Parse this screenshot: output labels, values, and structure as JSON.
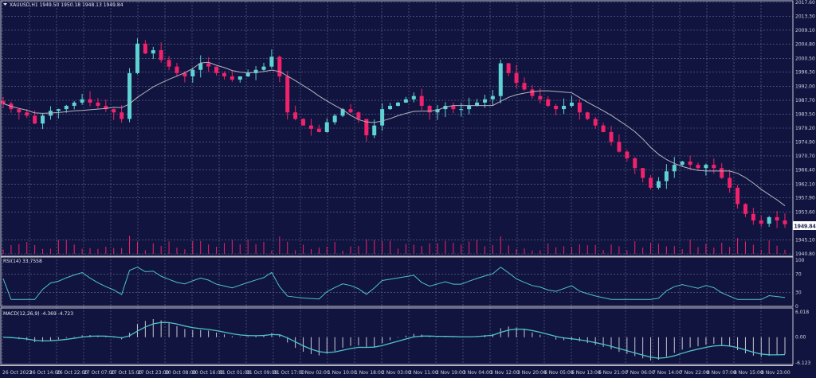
{
  "window": {
    "symbol_header": "XAUUSD,H1  1949.50 1950.18 1948.13 1949.84",
    "current_price": "1949.84"
  },
  "colors": {
    "background": "#11143f",
    "grid": "#6a6d8f",
    "bull_candle": "#5fd3d3",
    "bear_candle": "#f0226b",
    "moving_average": "#b4b4c0",
    "indicator_line": "#4fc3c7",
    "volume": "#f0226b",
    "macd_histogram": "#c8c8d0"
  },
  "chart_data": [
    {
      "type": "candlestick",
      "price_axis_labels": [
        "2017.60",
        "2013.30",
        "2009.10",
        "2004.80",
        "2000.50",
        "1996.30",
        "1992.00",
        "1987.70",
        "1983.50",
        "1979.20",
        "1974.90",
        "1970.70",
        "1966.40",
        "1962.10",
        "1957.90",
        "1953.60",
        "1945.10",
        "1940.80"
      ],
      "ylim": [
        1940.8,
        2017.6
      ],
      "overlay": "moving average",
      "closes": [
        1986.7,
        1985,
        1984,
        1983,
        1980.6,
        1983,
        1984.5,
        1985,
        1986,
        1987,
        1988,
        1987,
        1986,
        1985,
        1984,
        1982,
        1996,
        2005,
        2002,
        2003,
        2000,
        1998,
        1996,
        1995,
        1997,
        1999,
        1998,
        1996,
        1995,
        1994,
        1995,
        1996,
        1997,
        1998,
        2001,
        1995,
        1984,
        1982,
        1980,
        1979,
        1978,
        1981,
        1983,
        1985,
        1984,
        1982,
        1977,
        1980,
        1985,
        1986,
        1987,
        1988,
        1989,
        1986,
        1984,
        1985,
        1986,
        1985,
        1985,
        1986,
        1987,
        1988,
        1989,
        1999,
        1996,
        1993,
        1991,
        1989,
        1988,
        1986,
        1985,
        1986,
        1987,
        1984,
        1982,
        1980,
        1978,
        1975,
        1972,
        1970,
        1967,
        1964,
        1961,
        1963,
        1966,
        1968,
        1969,
        1968,
        1967,
        1968,
        1967,
        1964,
        1961,
        1956,
        1953,
        1951,
        1950,
        1952,
        1951,
        1949.84
      ]
    },
    {
      "type": "line",
      "title": "RSI(14) 33.7558",
      "axis_labels": [
        "100",
        "70",
        "30",
        "0"
      ],
      "ylim": [
        0,
        100
      ]
    },
    {
      "type": "line+bar",
      "title": "MACD(12,26,9) -4.369 -4.723",
      "axis_labels": [
        "6.018",
        "0.00",
        "-6.123"
      ],
      "ylim": [
        -6.123,
        6.018
      ]
    }
  ],
  "time_axis": [
    "26 Oct 2023",
    "26 Oct 14:00",
    "26 Oct 22:00",
    "27 Oct 07:00",
    "27 Oct 15:00",
    "27 Oct 23:00",
    "30 Oct 08:00",
    "30 Oct 16:00",
    "31 Oct 01:00",
    "31 Oct 09:00",
    "31 Oct 17:00",
    "1 Nov 02:00",
    "1 Nov 10:00",
    "1 Nov 18:00",
    "2 Nov 03:00",
    "2 Nov 11:00",
    "2 Nov 19:00",
    "3 Nov 04:00",
    "3 Nov 12:00",
    "3 Nov 20:00",
    "6 Nov 05:00",
    "6 Nov 13:00",
    "6 Nov 21:00",
    "7 Nov 06:00",
    "7 Nov 14:00",
    "7 Nov 22:00",
    "8 Nov 07:00",
    "8 Nov 15:00",
    "8 Nov 23:00"
  ]
}
